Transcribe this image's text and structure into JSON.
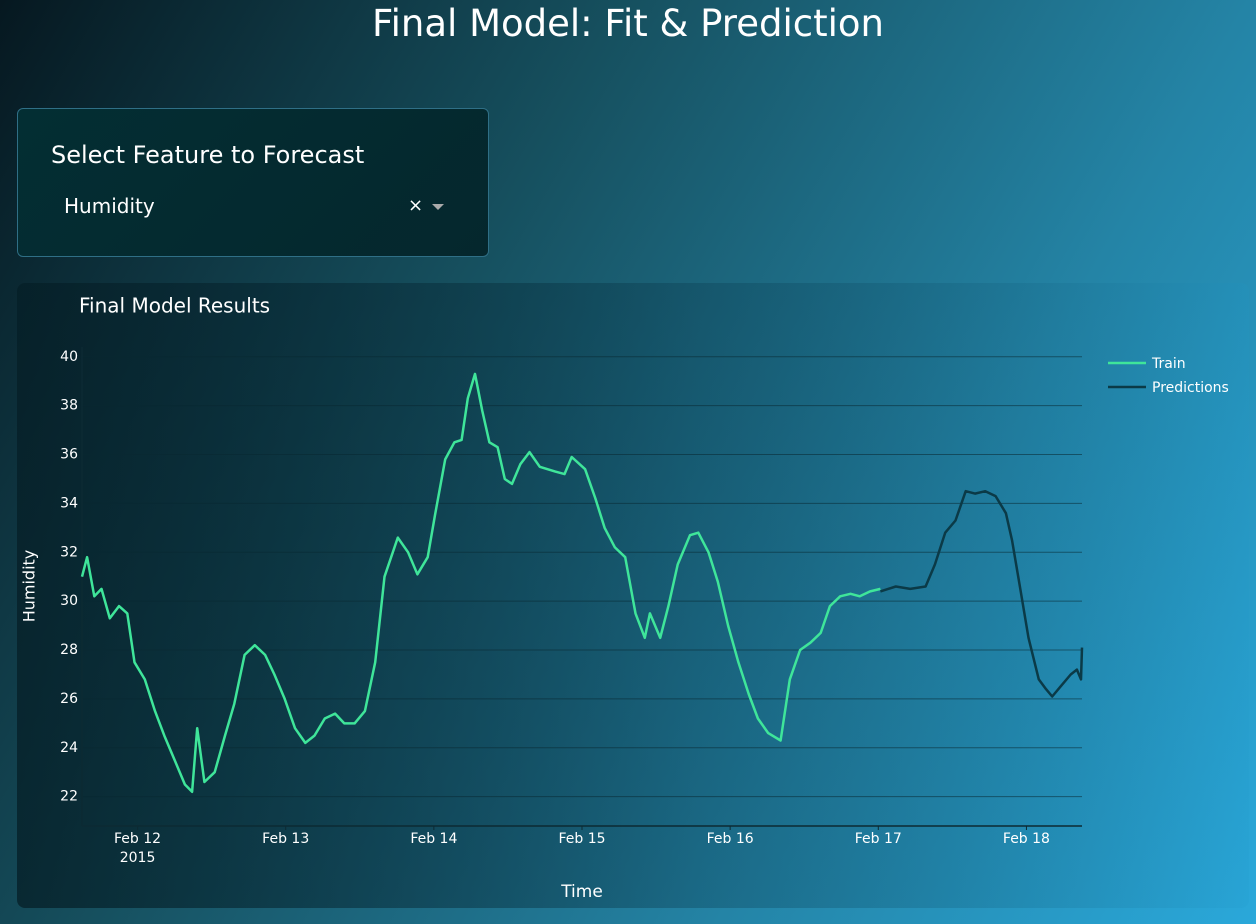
{
  "header": {
    "title": "Final Model: Fit & Prediction"
  },
  "controls": {
    "label": "Select Feature to Forecast",
    "selected": "Humidity"
  },
  "chart_data": {
    "type": "line",
    "title": "Final Model Results",
    "x_label": "Time",
    "y_label": "Humidity",
    "xlim": [
      "2015-02-11 15:00",
      "2015-02-18 09:00"
    ],
    "xticks": [
      {
        "value": "2015-02-12 00:00",
        "label": "Feb 12\n2015"
      },
      {
        "value": "2015-02-13 00:00",
        "label": "Feb 13"
      },
      {
        "value": "2015-02-14 00:00",
        "label": "Feb 14"
      },
      {
        "value": "2015-02-15 00:00",
        "label": "Feb 15"
      },
      {
        "value": "2015-02-16 00:00",
        "label": "Feb 16"
      },
      {
        "value": "2015-02-17 00:00",
        "label": "Feb 17"
      },
      {
        "value": "2015-02-18 00:00",
        "label": "Feb 18"
      }
    ],
    "ylim": [
      20.8,
      40.4
    ],
    "yticks": [
      22,
      24,
      26,
      28,
      30,
      32,
      34,
      36,
      38,
      40
    ],
    "grid": true,
    "legend": "right",
    "series": [
      {
        "name": "Train",
        "color": "#3fe59a",
        "x": [
          "2015-02-11 15:00",
          "2015-02-11 15:50",
          "2015-02-11 17:00",
          "2015-02-11 18:10",
          "2015-02-11 19:30",
          "2015-02-11 21:00",
          "2015-02-11 22:20",
          "2015-02-11 23:30",
          "2015-02-12 01:10",
          "2015-02-12 02:50",
          "2015-02-12 04:20",
          "2015-02-12 06:00",
          "2015-02-12 07:40",
          "2015-02-12 08:50",
          "2015-02-12 09:40",
          "2015-02-12 10:50",
          "2015-02-12 12:30",
          "2015-02-12 14:10",
          "2015-02-12 15:40",
          "2015-02-12 17:20",
          "2015-02-12 19:00",
          "2015-02-12 20:40",
          "2015-02-12 22:10",
          "2015-02-12 23:50",
          "2015-02-13 01:30",
          "2015-02-13 03:10",
          "2015-02-13 04:40",
          "2015-02-13 06:20",
          "2015-02-13 08:00",
          "2015-02-13 09:30",
          "2015-02-13 11:10",
          "2015-02-13 12:50",
          "2015-02-13 14:30",
          "2015-02-13 16:00",
          "2015-02-13 18:10",
          "2015-02-13 19:50",
          "2015-02-13 21:20",
          "2015-02-13 23:00",
          "2015-02-14 00:10",
          "2015-02-14 01:50",
          "2015-02-14 03:20",
          "2015-02-14 04:30",
          "2015-02-14 05:30",
          "2015-02-14 06:40",
          "2015-02-14 07:50",
          "2015-02-14 09:00",
          "2015-02-14 10:20",
          "2015-02-14 11:30",
          "2015-02-14 12:40",
          "2015-02-14 14:00",
          "2015-02-14 15:30",
          "2015-02-14 17:10",
          "2015-02-14 19:40",
          "2015-02-14 21:10",
          "2015-02-14 22:20",
          "2015-02-15 00:30",
          "2015-02-15 02:10",
          "2015-02-15 03:40",
          "2015-02-15 05:20",
          "2015-02-15 07:00",
          "2015-02-15 08:40",
          "2015-02-15 10:10",
          "2015-02-15 11:00",
          "2015-02-15 12:40",
          "2015-02-15 14:00",
          "2015-02-15 15:30",
          "2015-02-15 17:30",
          "2015-02-15 18:50",
          "2015-02-15 20:30",
          "2015-02-15 22:00",
          "2015-02-15 23:40",
          "2015-02-16 01:20",
          "2015-02-16 03:00",
          "2015-02-16 04:30",
          "2015-02-16 06:10",
          "2015-02-16 08:10",
          "2015-02-16 09:40",
          "2015-02-16 11:20",
          "2015-02-16 13:00",
          "2015-02-16 14:40",
          "2015-02-16 16:10",
          "2015-02-16 17:50",
          "2015-02-16 19:30",
          "2015-02-16 21:00",
          "2015-02-16 22:40",
          "2015-02-17 00:20"
        ],
        "values": [
          31.0,
          31.8,
          30.2,
          30.5,
          29.3,
          29.8,
          29.5,
          27.5,
          26.8,
          25.5,
          24.5,
          23.5,
          22.5,
          22.2,
          24.8,
          22.6,
          23.0,
          24.5,
          25.8,
          27.8,
          28.2,
          27.8,
          27.0,
          26.0,
          24.8,
          24.2,
          24.5,
          25.2,
          25.4,
          25.0,
          25.0,
          25.5,
          27.5,
          31.0,
          32.6,
          32.0,
          31.1,
          31.8,
          33.5,
          35.8,
          36.5,
          36.6,
          38.3,
          39.3,
          37.8,
          36.5,
          36.3,
          35.0,
          34.8,
          35.6,
          36.1,
          35.5,
          35.3,
          35.2,
          35.9,
          35.4,
          34.2,
          33.0,
          32.2,
          31.8,
          29.5,
          28.5,
          29.5,
          28.5,
          29.8,
          31.5,
          32.7,
          32.8,
          32.0,
          30.8,
          29.0,
          27.5,
          26.2,
          25.2,
          24.6,
          24.3,
          26.8,
          28.0,
          28.3,
          28.7,
          29.8,
          30.2,
          30.3,
          30.2,
          30.4,
          30.5
        ]
      },
      {
        "name": "Predictions",
        "color": "#0b3a47",
        "x": [
          "2015-02-17 00:20",
          "2015-02-17 02:50",
          "2015-02-17 05:10",
          "2015-02-17 07:40",
          "2015-02-17 09:10",
          "2015-02-17 10:50",
          "2015-02-17 12:30",
          "2015-02-17 14:10",
          "2015-02-17 15:40",
          "2015-02-17 17:20",
          "2015-02-17 19:00",
          "2015-02-17 20:40",
          "2015-02-17 21:40",
          "2015-02-17 23:00",
          "2015-02-18 00:20",
          "2015-02-18 02:00",
          "2015-02-18 03:10",
          "2015-02-18 04:10",
          "2015-02-18 05:30",
          "2015-02-18 07:10",
          "2015-02-18 08:10",
          "2015-02-18 08:50",
          "2015-02-18 09:00"
        ],
        "values": [
          30.4,
          30.6,
          30.5,
          30.6,
          31.5,
          32.8,
          33.3,
          34.5,
          34.4,
          34.5,
          34.3,
          33.6,
          32.5,
          30.5,
          28.5,
          26.8,
          26.4,
          26.1,
          26.5,
          27.0,
          27.2,
          26.8,
          28.1
        ]
      }
    ]
  }
}
